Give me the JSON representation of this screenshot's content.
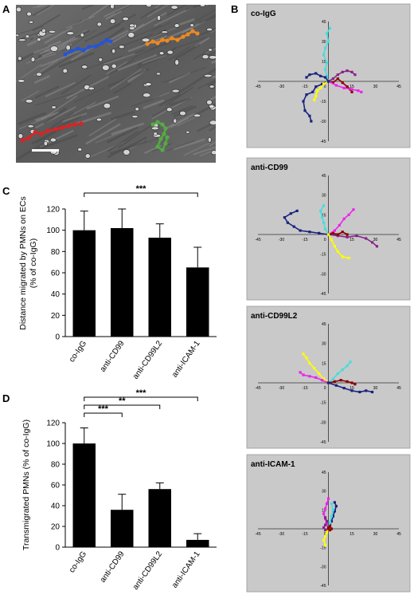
{
  "figure": {
    "panel_labels": [
      "A",
      "B",
      "C",
      "D"
    ]
  },
  "micrograph": {
    "tracks": [
      {
        "color": "#2255dd",
        "name": "blue-track"
      },
      {
        "color": "#ee8822",
        "name": "orange-track"
      },
      {
        "color": "#dd2222",
        "name": "red-track"
      },
      {
        "color": "#55aa44",
        "name": "green-track"
      }
    ]
  },
  "chart_data": [
    {
      "type": "bar",
      "panel": "C",
      "categories": [
        "co-IgG",
        "anti-CD99",
        "anti-CD99L2",
        "anti-ICAM-1"
      ],
      "values": [
        100,
        102,
        93,
        65
      ],
      "errors": [
        18,
        18,
        13,
        19
      ],
      "ylabel": "Distance migrated by PMNs on ECs\n(% of co-IgG)",
      "ylabel_lines": [
        "Distance migrated by PMNs on ECs",
        "(% of co-IgG)"
      ],
      "ylim": [
        0,
        120
      ],
      "yticks": [
        "0",
        "20",
        "40",
        "60",
        "80",
        "100",
        "120"
      ],
      "significance": [
        {
          "from": "co-IgG",
          "to": "anti-ICAM-1",
          "label": "***"
        }
      ]
    },
    {
      "type": "bar",
      "panel": "D",
      "categories": [
        "co-IgG",
        "anti-CD99",
        "anti-CD99L2",
        "anti-ICAM-1"
      ],
      "values": [
        100,
        36,
        56,
        7
      ],
      "errors": [
        15,
        15,
        6,
        6
      ],
      "ylabel": "Transmigrated PMNs (% of co-IgG)",
      "ylim": [
        0,
        120
      ],
      "yticks": [
        "0",
        "20",
        "40",
        "60",
        "80",
        "100",
        "120"
      ],
      "significance": [
        {
          "from": "co-IgG",
          "to": "anti-CD99",
          "label": "***"
        },
        {
          "from": "co-IgG",
          "to": "anti-CD99L2",
          "label": "**"
        },
        {
          "from": "co-IgG",
          "to": "anti-ICAM-1",
          "label": "***"
        }
      ]
    },
    {
      "type": "line",
      "panel": "B",
      "subplots": [
        {
          "title": "co-IgG",
          "xlim": [
            -45,
            45
          ],
          "ylim": [
            -45,
            45
          ],
          "xticks": [
            "-45",
            "-30",
            "-15",
            "0",
            "15",
            "30",
            "45"
          ],
          "yticks": [
            "45",
            "30",
            "15",
            "0",
            "-15",
            "-30",
            "-45"
          ],
          "series": [
            {
              "color": "#44dddd",
              "points": [
                [
                  0,
                  0
                ],
                [
                  -1,
                  4
                ],
                [
                  -2,
                  9
                ],
                [
                  -1,
                  14
                ],
                [
                  -3,
                  20
                ],
                [
                  -2,
                  25
                ],
                [
                  0,
                  30
                ],
                [
                  -1,
                  36
                ],
                [
                  1,
                  40
                ]
              ]
            },
            {
              "color": "#1a237e",
              "points": [
                [
                  0,
                  0
                ],
                [
                  -4,
                  -2
                ],
                [
                  -8,
                  -4
                ],
                [
                  -10,
                  -8
                ],
                [
                  -14,
                  -10
                ],
                [
                  -16,
                  -15
                ],
                [
                  -15,
                  -22
                ],
                [
                  -12,
                  -26
                ],
                [
                  -11,
                  -30
                ]
              ]
            },
            {
              "color": "#882288",
              "points": [
                [
                  0,
                  0
                ],
                [
                  3,
                  2
                ],
                [
                  6,
                  5
                ],
                [
                  9,
                  7
                ],
                [
                  12,
                  8
                ],
                [
                  15,
                  7
                ],
                [
                  17,
                  5
                ]
              ]
            },
            {
              "color": "#8b0000",
              "points": [
                [
                  0,
                  0
                ],
                [
                  3,
                  -1
                ],
                [
                  6,
                  2
                ],
                [
                  9,
                  -1
                ],
                [
                  12,
                  -4
                ],
                [
                  14,
                  -6
                ],
                [
                  15,
                  -8
                ]
              ]
            },
            {
              "color": "#ee22ee",
              "points": [
                [
                  0,
                  0
                ],
                [
                  5,
                  -3
                ],
                [
                  10,
                  -5
                ],
                [
                  15,
                  -6
                ],
                [
                  19,
                  -7
                ],
                [
                  21,
                  -8
                ]
              ]
            },
            {
              "color": "#ffff00",
              "points": [
                [
                  0,
                  0
                ],
                [
                  -3,
                  -2
                ],
                [
                  -5,
                  -5
                ],
                [
                  -7,
                  -7
                ],
                [
                  -8,
                  -11
                ],
                [
                  -9,
                  -14
                ]
              ]
            },
            {
              "color": "#1a237e",
              "points": [
                [
                  0,
                  0
                ],
                [
                  -2,
                  3
                ],
                [
                  -5,
                  4
                ],
                [
                  -8,
                  6
                ],
                [
                  -12,
                  5
                ],
                [
                  -14,
                  3
                ]
              ]
            }
          ]
        },
        {
          "title": "anti-CD99",
          "xlim": [
            -45,
            45
          ],
          "ylim": [
            -45,
            45
          ],
          "xticks": [
            "-45",
            "-30",
            "-15",
            "0",
            "15",
            "30",
            "45"
          ],
          "yticks": [
            "45",
            "30",
            "15",
            "0",
            "-15",
            "-30",
            "-45"
          ],
          "series": [
            {
              "color": "#1a237e",
              "points": [
                [
                  0,
                  0
                ],
                [
                  -6,
                  1
                ],
                [
                  -12,
                  2
                ],
                [
                  -18,
                  3
                ],
                [
                  -22,
                  6
                ],
                [
                  -26,
                  9
                ],
                [
                  -28,
                  13
                ],
                [
                  -24,
                  16
                ],
                [
                  -20,
                  18
                ]
              ]
            },
            {
              "color": "#44dddd",
              "points": [
                [
                  0,
                  0
                ],
                [
                  -2,
                  4
                ],
                [
                  -3,
                  9
                ],
                [
                  -4,
                  13
                ],
                [
                  -5,
                  18
                ],
                [
                  -3,
                  22
                ]
              ]
            },
            {
              "color": "#ee22ee",
              "points": [
                [
                  0,
                  0
                ],
                [
                  4,
                  3
                ],
                [
                  7,
                  7
                ],
                [
                  10,
                  12
                ],
                [
                  13,
                  15
                ],
                [
                  16,
                  19
                ]
              ]
            },
            {
              "color": "#882288",
              "points": [
                [
                  0,
                  0
                ],
                [
                  6,
                  -1
                ],
                [
                  12,
                  -2
                ],
                [
                  18,
                  -1
                ],
                [
                  24,
                  -3
                ],
                [
                  28,
                  -6
                ],
                [
                  31,
                  -9
                ]
              ]
            },
            {
              "color": "#8b0000",
              "points": [
                [
                  0,
                  0
                ],
                [
                  3,
                  1
                ],
                [
                  6,
                  0
                ],
                [
                  9,
                  2
                ],
                [
                  12,
                  0
                ]
              ]
            },
            {
              "color": "#ffff00",
              "points": [
                [
                  0,
                  0
                ],
                [
                  2,
                  -4
                ],
                [
                  4,
                  -9
                ],
                [
                  6,
                  -13
                ],
                [
                  9,
                  -17
                ],
                [
                  13,
                  -18
                ]
              ]
            }
          ]
        },
        {
          "title": "anti-CD99L2",
          "xlim": [
            -45,
            45
          ],
          "ylim": [
            -45,
            45
          ],
          "xticks": [
            "-45",
            "-30",
            "-15",
            "0",
            "15",
            "30",
            "45"
          ],
          "yticks": [
            "45",
            "30",
            "15",
            "0",
            "-15",
            "-30",
            "-45"
          ],
          "series": [
            {
              "color": "#ffff00",
              "points": [
                [
                  0,
                  0
                ],
                [
                  -3,
                  3
                ],
                [
                  -6,
                  7
                ],
                [
                  -9,
                  11
                ],
                [
                  -12,
                  15
                ],
                [
                  -14,
                  19
                ],
                [
                  -16,
                  22
                ]
              ]
            },
            {
              "color": "#ee22ee",
              "points": [
                [
                  0,
                  0
                ],
                [
                  -4,
                  2
                ],
                [
                  -8,
                  4
                ],
                [
                  -12,
                  5
                ],
                [
                  -16,
                  6
                ],
                [
                  -18,
                  8
                ]
              ]
            },
            {
              "color": "#44dddd",
              "points": [
                [
                  0,
                  0
                ],
                [
                  3,
                  3
                ],
                [
                  6,
                  7
                ],
                [
                  9,
                  10
                ],
                [
                  12,
                  13
                ],
                [
                  14,
                  16
                ]
              ]
            },
            {
              "color": "#8b0000",
              "points": [
                [
                  0,
                  0
                ],
                [
                  4,
                  1
                ],
                [
                  8,
                  2
                ],
                [
                  12,
                  1
                ],
                [
                  15,
                  0
                ],
                [
                  17,
                  -1
                ]
              ]
            },
            {
              "color": "#1a237e",
              "points": [
                [
                  0,
                  0
                ],
                [
                  5,
                  -2
                ],
                [
                  10,
                  -4
                ],
                [
                  15,
                  -6
                ],
                [
                  20,
                  -7
                ],
                [
                  24,
                  -6
                ],
                [
                  28,
                  -7
                ]
              ]
            }
          ]
        },
        {
          "title": "anti-ICAM-1",
          "xlim": [
            -45,
            45
          ],
          "ylim": [
            -45,
            45
          ],
          "xticks": [
            "-45",
            "-30",
            "-15",
            "0",
            "15",
            "30",
            "45"
          ],
          "yticks": [
            "45",
            "30",
            "15",
            "0",
            "-15",
            "-30",
            "-45"
          ],
          "series": [
            {
              "color": "#ee22ee",
              "points": [
                [
                  0,
                  0
                ],
                [
                  -1,
                  4
                ],
                [
                  -2,
                  8
                ],
                [
                  -3,
                  12
                ],
                [
                  -2,
                  16
                ],
                [
                  -1,
                  20
                ],
                [
                  0,
                  24
                ]
              ]
            },
            {
              "color": "#1a237e",
              "points": [
                [
                  0,
                  0
                ],
                [
                  1,
                  3
                ],
                [
                  2,
                  6
                ],
                [
                  3,
                  10
                ],
                [
                  4,
                  14
                ],
                [
                  5,
                  18
                ],
                [
                  4,
                  21
                ]
              ]
            },
            {
              "color": "#44dddd",
              "points": [
                [
                  0,
                  0
                ],
                [
                  1,
                  5
                ],
                [
                  2,
                  10
                ],
                [
                  3,
                  15
                ],
                [
                  2,
                  20
                ]
              ]
            },
            {
              "color": "#882288",
              "points": [
                [
                  0,
                  0
                ],
                [
                  -2,
                  -1
                ],
                [
                  -3,
                  1
                ],
                [
                  -2,
                  3
                ],
                [
                  -1,
                  6
                ],
                [
                  -2,
                  9
                ]
              ]
            },
            {
              "color": "#ffff00",
              "points": [
                [
                  0,
                  0
                ],
                [
                  -1,
                  -3
                ],
                [
                  -2,
                  -6
                ],
                [
                  -3,
                  -9
                ],
                [
                  -2,
                  -13
                ]
              ]
            },
            {
              "color": "#8b0000",
              "points": [
                [
                  0,
                  0
                ],
                [
                  1,
                  -1
                ],
                [
                  2,
                  0
                ],
                [
                  1,
                  2
                ],
                [
                  0,
                  1
                ]
              ]
            }
          ]
        }
      ]
    }
  ]
}
